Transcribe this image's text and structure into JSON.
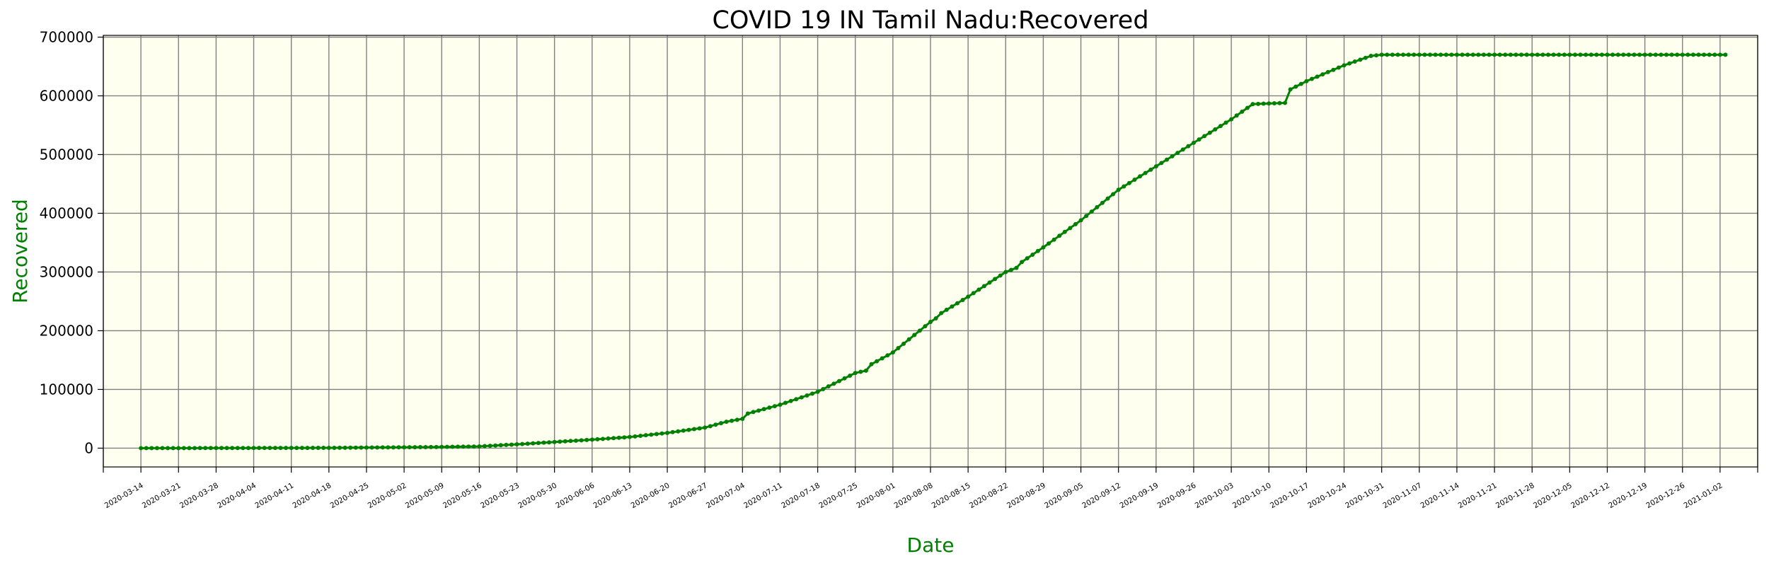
{
  "chart_data": {
    "type": "line",
    "title": "COVID 19 IN Tamil Nadu:Recovered",
    "xlabel": "Date",
    "ylabel": "Recovered",
    "x_range": [
      "2020-03-07",
      "2021-01-09"
    ],
    "ylim": [
      -32000,
      703000
    ],
    "yticks": [
      0,
      100000,
      200000,
      300000,
      400000,
      500000,
      600000,
      700000
    ],
    "ytick_labels": [
      "0",
      "100000",
      "200000",
      "300000",
      "400000",
      "500000",
      "600000",
      "700000"
    ],
    "xticks": [
      "2020-03-14",
      "2020-03-21",
      "2020-03-28",
      "2020-04-04",
      "2020-04-11",
      "2020-04-18",
      "2020-04-25",
      "2020-05-02",
      "2020-05-09",
      "2020-05-16",
      "2020-05-23",
      "2020-05-30",
      "2020-06-06",
      "2020-06-13",
      "2020-06-20",
      "2020-06-27",
      "2020-07-04",
      "2020-07-11",
      "2020-07-18",
      "2020-07-25",
      "2020-08-01",
      "2020-08-08",
      "2020-08-15",
      "2020-08-22",
      "2020-08-29",
      "2020-09-05",
      "2020-09-12",
      "2020-09-19",
      "2020-09-26",
      "2020-10-03",
      "2020-10-10",
      "2020-10-17",
      "2020-10-24",
      "2020-10-31",
      "2020-11-07",
      "2020-11-14",
      "2020-11-21",
      "2020-11-28",
      "2020-12-05",
      "2020-12-12",
      "2020-12-19",
      "2020-12-26",
      "2021-01-02"
    ],
    "grid": true,
    "background": "#fffff0",
    "series": [
      {
        "color": "#008000",
        "marker": "circle",
        "points": [
          [
            "2020-03-14",
            0
          ],
          [
            "2020-04-18",
            500
          ],
          [
            "2020-05-02",
            1500
          ],
          [
            "2020-05-09",
            2000
          ],
          [
            "2020-05-16",
            3000
          ],
          [
            "2020-05-23",
            6500
          ],
          [
            "2020-05-30",
            10500
          ],
          [
            "2020-06-06",
            14500
          ],
          [
            "2020-06-13",
            19000
          ],
          [
            "2020-06-20",
            26000
          ],
          [
            "2020-06-27",
            35000
          ],
          [
            "2020-07-01",
            45000
          ],
          [
            "2020-07-04",
            50000
          ],
          [
            "2020-07-05",
            59000
          ],
          [
            "2020-07-11",
            74000
          ],
          [
            "2020-07-18",
            96000
          ],
          [
            "2020-07-25",
            128000
          ],
          [
            "2020-07-27",
            132000
          ],
          [
            "2020-07-28",
            143000
          ],
          [
            "2020-08-01",
            163000
          ],
          [
            "2020-08-08",
            215000
          ],
          [
            "2020-08-09",
            221000
          ],
          [
            "2020-08-10",
            230000
          ],
          [
            "2020-08-15",
            258000
          ],
          [
            "2020-08-22",
            300000
          ],
          [
            "2020-08-24",
            307000
          ],
          [
            "2020-08-25",
            317000
          ],
          [
            "2020-08-29",
            342000
          ],
          [
            "2020-09-05",
            388000
          ],
          [
            "2020-09-12",
            440000
          ],
          [
            "2020-09-19",
            480000
          ],
          [
            "2020-09-26",
            520000
          ],
          [
            "2020-10-03",
            560000
          ],
          [
            "2020-10-07",
            586000
          ],
          [
            "2020-10-13",
            588000
          ],
          [
            "2020-10-14",
            611000
          ],
          [
            "2020-10-17",
            625000
          ],
          [
            "2020-10-24",
            652000
          ],
          [
            "2020-10-29",
            668000
          ],
          [
            "2020-10-31",
            670000
          ],
          [
            "2021-01-03",
            670000
          ]
        ]
      }
    ]
  }
}
